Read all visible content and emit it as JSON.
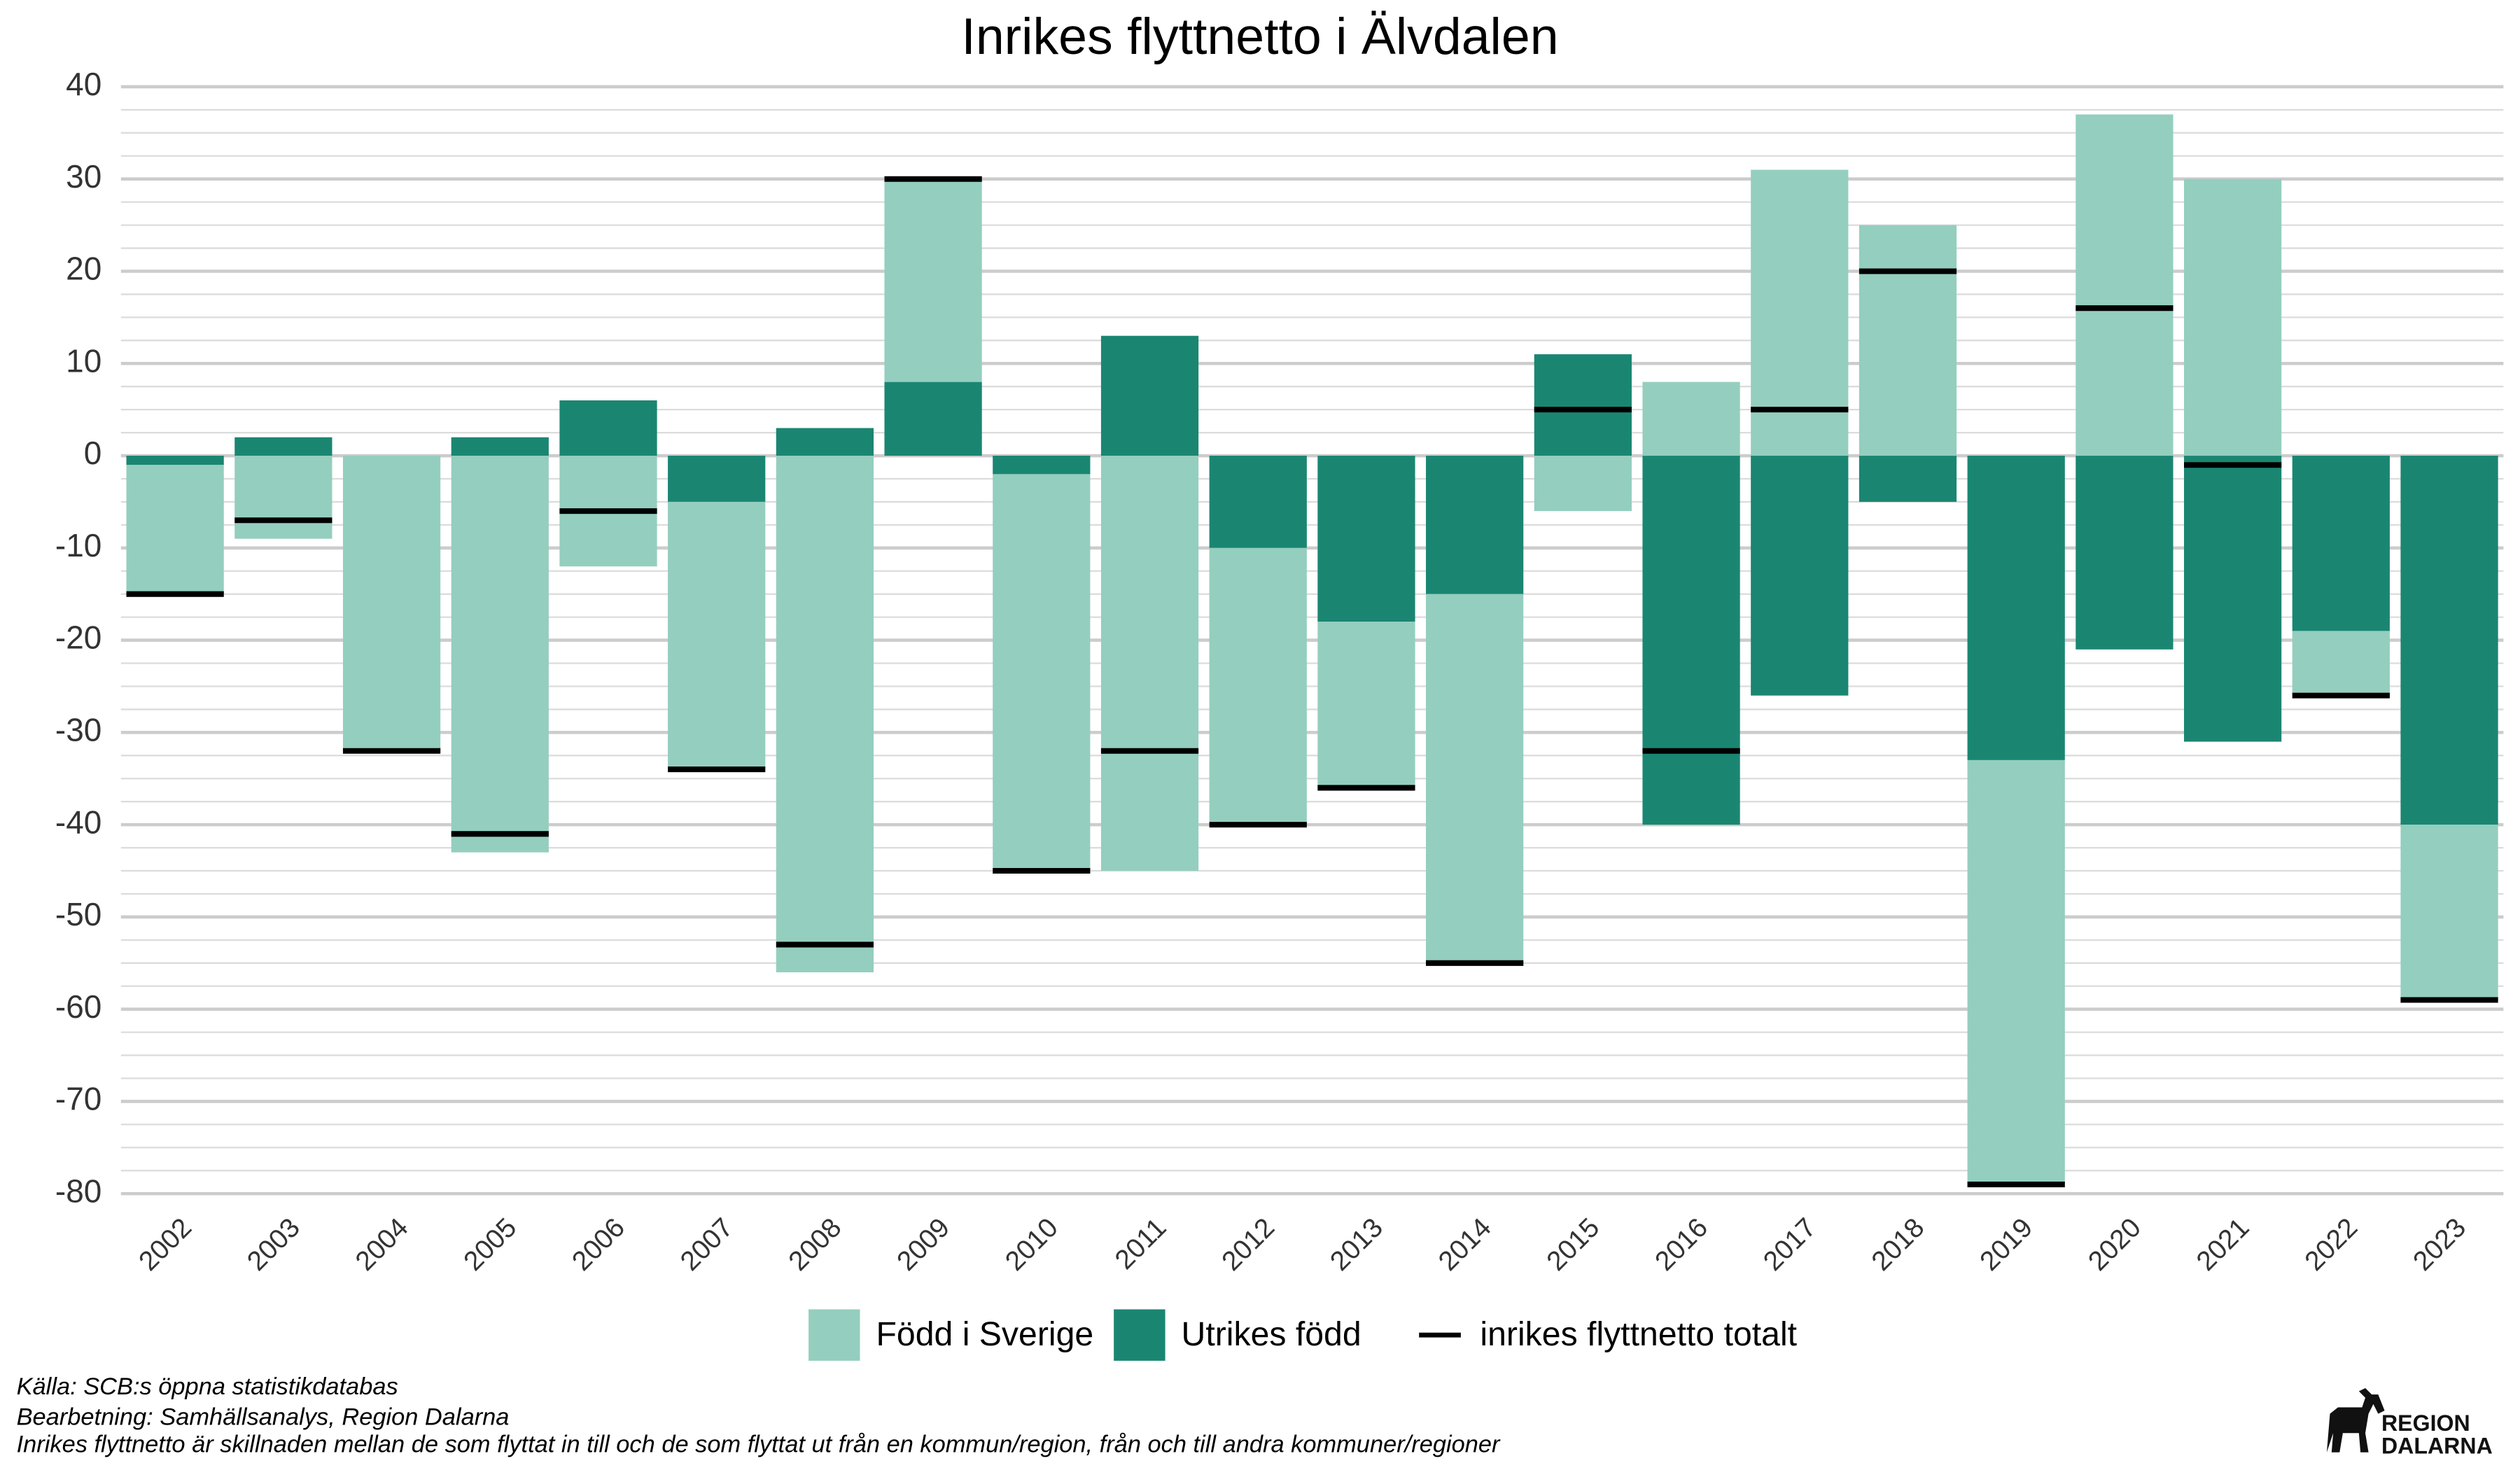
{
  "chart_data": {
    "type": "stacked_bar",
    "title": "Inrikes flyttnetto i Älvdalen",
    "categories": [
      "2002",
      "2003",
      "2004",
      "2005",
      "2006",
      "2007",
      "2008",
      "2009",
      "2010",
      "2011",
      "2012",
      "2013",
      "2014",
      "2015",
      "2016",
      "2017",
      "2018",
      "2019",
      "2020",
      "2021",
      "2022",
      "2023"
    ],
    "series": [
      {
        "name": "Född i Sverige",
        "color": "#94cebf",
        "values": [
          -14,
          -9,
          -32,
          -43,
          -12,
          -29,
          -56,
          22,
          -43,
          -45,
          -30,
          -18,
          -40,
          -6,
          8,
          31,
          25,
          -46,
          37,
          30,
          -7,
          -19
        ]
      },
      {
        "name": "Utrikes född",
        "color": "#1a8672",
        "values": [
          -1,
          2,
          0,
          2,
          6,
          -5,
          3,
          8,
          -2,
          13,
          -10,
          -18,
          -15,
          11,
          -40,
          -26,
          -5,
          -33,
          -21,
          -31,
          -19,
          -40
        ]
      },
      {
        "name": "inrikes flyttnetto totalt",
        "color": "#000000",
        "type": "marker",
        "values": [
          -15,
          -7,
          -32,
          -41,
          -6,
          -34,
          -53,
          30,
          -45,
          -32,
          -40,
          -36,
          -55,
          5,
          -32,
          5,
          20,
          -79,
          16,
          -1,
          -26,
          -59
        ]
      }
    ],
    "ylim": [
      -80,
      40
    ],
    "yticks": [
      -80,
      -70,
      -60,
      -50,
      -40,
      -30,
      -20,
      -10,
      0,
      10,
      20,
      30,
      40
    ],
    "grid": true,
    "notes": [
      "Källa: SCB:s öppna statistikdatabas",
      "Bearbetning: Samhällsanalys, Region Dalarna",
      "Inrikes flyttnetto är skillnaden mellan de som flyttat in till och de som flyttat ut från en kommun/region, från och till andra kommuner/regioner"
    ],
    "logo": [
      "REGION",
      "DALARNA"
    ]
  }
}
